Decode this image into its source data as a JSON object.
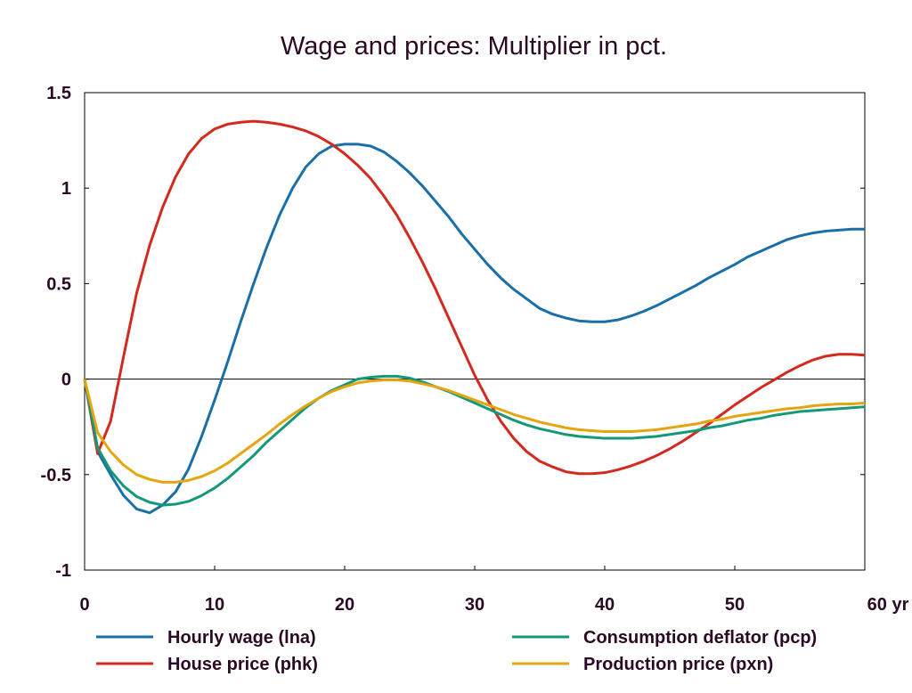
{
  "chart_data": {
    "type": "line",
    "title": "Wage and prices: Multiplier in pct.",
    "xlabel": "",
    "ylabel": "",
    "x_unit": "yr",
    "xlim": [
      0,
      60
    ],
    "ylim": [
      -1,
      1.5
    ],
    "x_ticks": [
      0,
      10,
      20,
      30,
      40,
      50,
      60
    ],
    "x_tick_labels": [
      "0",
      "10",
      "20",
      "30",
      "40",
      "50",
      "60 yr"
    ],
    "y_ticks": [
      1.5,
      1,
      0.5,
      0,
      -0.5,
      -1
    ],
    "y_tick_labels": [
      "1.5",
      "1",
      "0.5",
      "0",
      "-0.5",
      "-1"
    ],
    "zero_line": true,
    "legend_position": "bottom",
    "x": [
      0,
      1,
      2,
      3,
      4,
      5,
      6,
      7,
      8,
      9,
      10,
      11,
      12,
      13,
      14,
      15,
      16,
      17,
      18,
      19,
      20,
      21,
      22,
      23,
      24,
      25,
      26,
      27,
      28,
      29,
      30,
      31,
      32,
      33,
      34,
      35,
      36,
      37,
      38,
      39,
      40,
      41,
      42,
      43,
      44,
      45,
      46,
      47,
      48,
      49,
      50,
      51,
      52,
      53,
      54,
      55,
      56,
      57,
      58,
      59,
      60
    ],
    "series": [
      {
        "name": "Hourly wage (lna)",
        "color": "#1a6fa8",
        "values": [
          0,
          -0.38,
          -0.5,
          -0.61,
          -0.68,
          -0.7,
          -0.66,
          -0.59,
          -0.47,
          -0.3,
          -0.11,
          0.09,
          0.3,
          0.5,
          0.69,
          0.86,
          1.0,
          1.11,
          1.18,
          1.22,
          1.23,
          1.23,
          1.22,
          1.19,
          1.14,
          1.08,
          1.01,
          0.93,
          0.85,
          0.76,
          0.68,
          0.6,
          0.53,
          0.47,
          0.42,
          0.37,
          0.34,
          0.32,
          0.305,
          0.3,
          0.3,
          0.31,
          0.33,
          0.355,
          0.385,
          0.42,
          0.455,
          0.49,
          0.53,
          0.565,
          0.6,
          0.64,
          0.67,
          0.7,
          0.73,
          0.75,
          0.765,
          0.775,
          0.78,
          0.785,
          0.785
        ]
      },
      {
        "name": "House price (phk)",
        "color": "#d22a1e",
        "values": [
          0,
          -0.39,
          -0.22,
          0.12,
          0.45,
          0.7,
          0.9,
          1.06,
          1.18,
          1.26,
          1.31,
          1.335,
          1.345,
          1.35,
          1.345,
          1.335,
          1.32,
          1.3,
          1.27,
          1.23,
          1.18,
          1.12,
          1.05,
          0.96,
          0.86,
          0.74,
          0.61,
          0.47,
          0.32,
          0.17,
          0.02,
          -0.11,
          -0.22,
          -0.31,
          -0.38,
          -0.43,
          -0.46,
          -0.485,
          -0.495,
          -0.495,
          -0.49,
          -0.475,
          -0.455,
          -0.43,
          -0.4,
          -0.365,
          -0.325,
          -0.28,
          -0.235,
          -0.185,
          -0.135,
          -0.09,
          -0.045,
          -0.005,
          0.035,
          0.07,
          0.1,
          0.12,
          0.13,
          0.13,
          0.125
        ]
      },
      {
        "name": "Consumption deflator (pcp)",
        "color": "#13997a",
        "values": [
          0,
          -0.36,
          -0.48,
          -0.56,
          -0.615,
          -0.645,
          -0.66,
          -0.655,
          -0.64,
          -0.61,
          -0.57,
          -0.52,
          -0.46,
          -0.4,
          -0.33,
          -0.27,
          -0.21,
          -0.15,
          -0.1,
          -0.06,
          -0.03,
          0.0,
          0.01,
          0.015,
          0.015,
          0.005,
          -0.015,
          -0.04,
          -0.065,
          -0.095,
          -0.125,
          -0.155,
          -0.185,
          -0.215,
          -0.24,
          -0.26,
          -0.275,
          -0.29,
          -0.3,
          -0.305,
          -0.31,
          -0.31,
          -0.31,
          -0.305,
          -0.3,
          -0.29,
          -0.28,
          -0.27,
          -0.255,
          -0.245,
          -0.23,
          -0.215,
          -0.205,
          -0.19,
          -0.18,
          -0.17,
          -0.165,
          -0.16,
          -0.155,
          -0.15,
          -0.145
        ]
      },
      {
        "name": "Production price (pxn)",
        "color": "#e5a50f",
        "values": [
          0,
          -0.28,
          -0.38,
          -0.45,
          -0.5,
          -0.525,
          -0.54,
          -0.54,
          -0.53,
          -0.51,
          -0.48,
          -0.44,
          -0.39,
          -0.34,
          -0.29,
          -0.235,
          -0.185,
          -0.14,
          -0.1,
          -0.065,
          -0.04,
          -0.02,
          -0.01,
          -0.005,
          -0.005,
          -0.01,
          -0.025,
          -0.04,
          -0.06,
          -0.085,
          -0.11,
          -0.135,
          -0.16,
          -0.185,
          -0.205,
          -0.225,
          -0.24,
          -0.255,
          -0.265,
          -0.27,
          -0.275,
          -0.275,
          -0.275,
          -0.27,
          -0.265,
          -0.255,
          -0.245,
          -0.235,
          -0.22,
          -0.21,
          -0.195,
          -0.185,
          -0.175,
          -0.165,
          -0.155,
          -0.15,
          -0.14,
          -0.135,
          -0.13,
          -0.13,
          -0.125
        ]
      }
    ]
  }
}
